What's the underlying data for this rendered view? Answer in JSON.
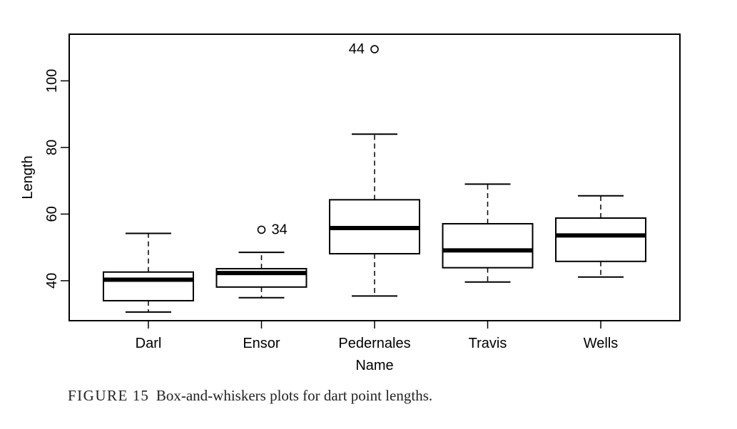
{
  "chart_data": {
    "type": "boxplot",
    "title": "",
    "xlabel": "Name",
    "ylabel": "Length",
    "ylim": [
      28,
      114
    ],
    "yticks": [
      40,
      60,
      80,
      100
    ],
    "categories": [
      "Darl",
      "Ensor",
      "Pedernales",
      "Travis",
      "Wells"
    ],
    "boxes": [
      {
        "name": "Darl",
        "whisker_low": 30.6,
        "q1": 34.0,
        "median": 40.3,
        "q3": 42.6,
        "whisker_high": 54.2,
        "outliers": []
      },
      {
        "name": "Ensor",
        "whisker_low": 34.9,
        "q1": 38.1,
        "median": 42.3,
        "q3": 43.6,
        "whisker_high": 48.5,
        "outliers": [
          {
            "value": 55.3,
            "label": "34"
          }
        ]
      },
      {
        "name": "Pedernales",
        "whisker_low": 35.4,
        "q1": 48.1,
        "median": 55.8,
        "q3": 64.3,
        "whisker_high": 84.0,
        "outliers": [
          {
            "value": 109.5,
            "label": "44"
          }
        ]
      },
      {
        "name": "Travis",
        "whisker_low": 39.6,
        "q1": 43.9,
        "median": 49.1,
        "q3": 57.1,
        "whisker_high": 69.0,
        "outliers": []
      },
      {
        "name": "Wells",
        "whisker_low": 41.1,
        "q1": 45.8,
        "median": 53.6,
        "q3": 58.8,
        "whisker_high": 65.5,
        "outliers": []
      }
    ]
  },
  "caption": {
    "label": "FIGURE",
    "number": "15",
    "text": "Box-and-whiskers plots for dart point lengths."
  }
}
